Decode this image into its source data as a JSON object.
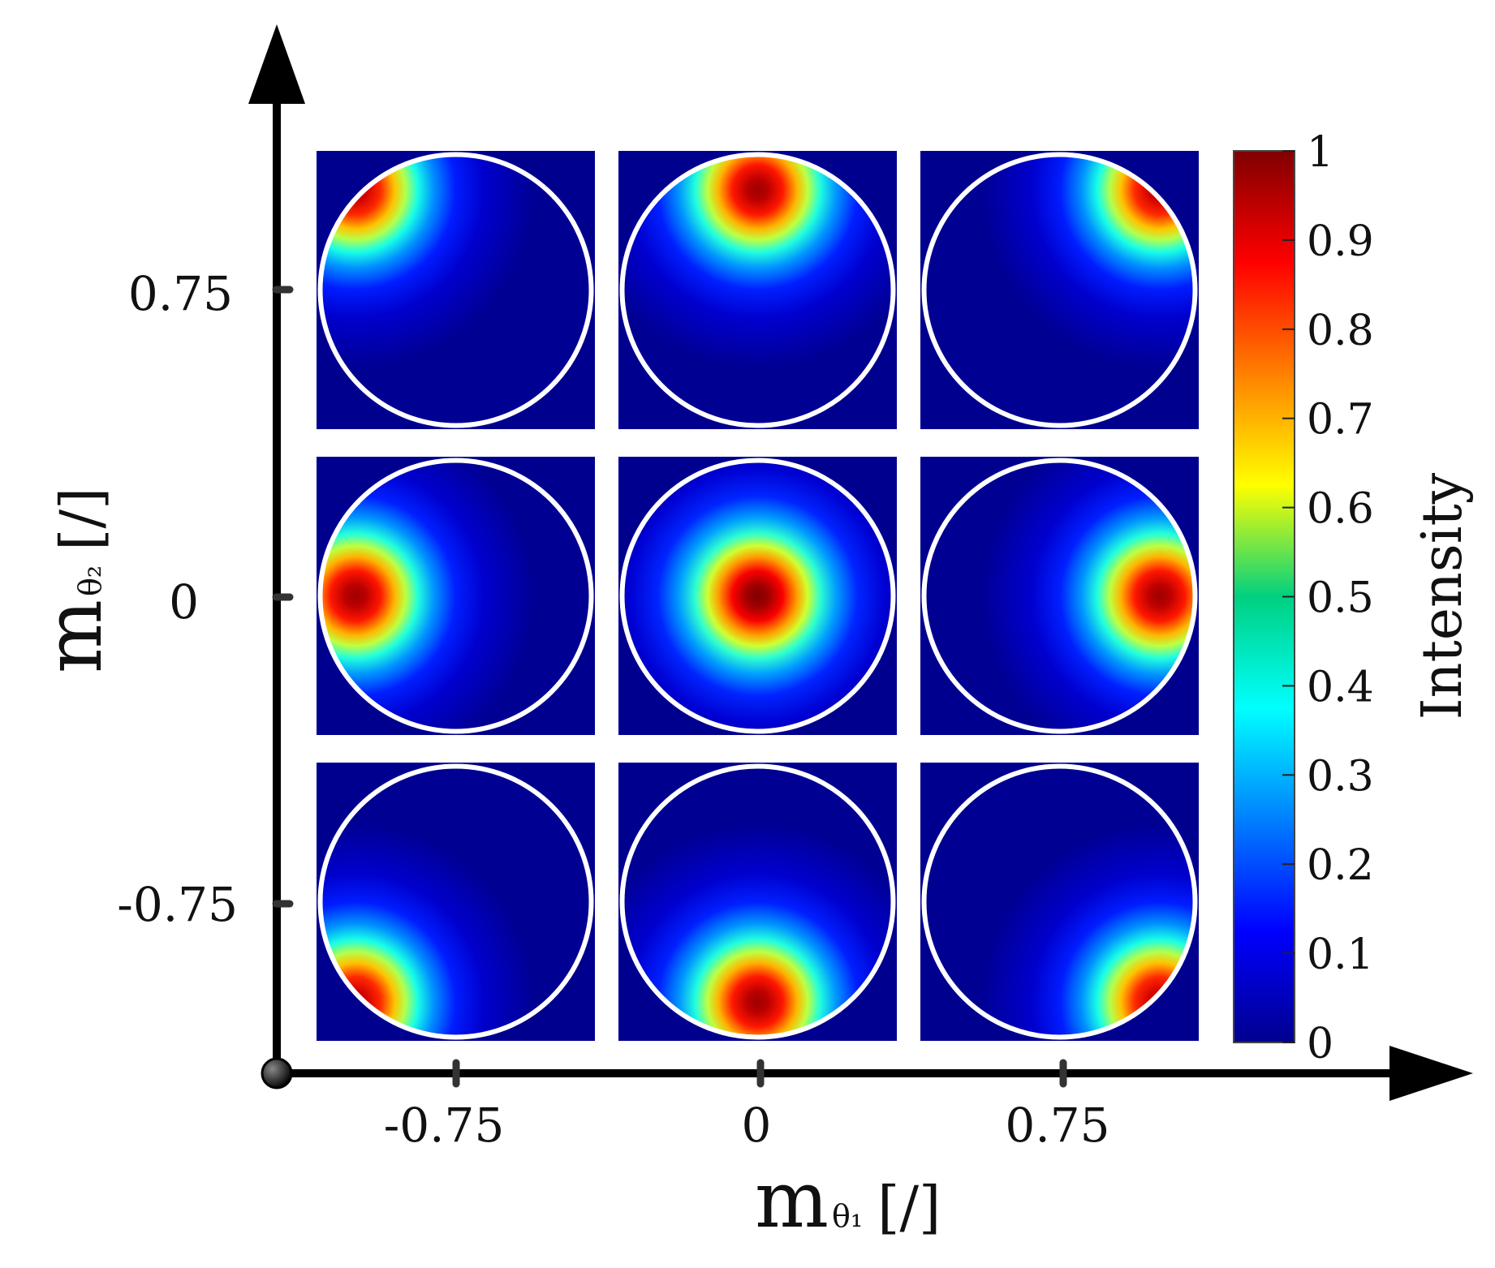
{
  "chart_data": {
    "type": "heatmap",
    "title": "",
    "xlabel": {
      "main": "m",
      "sub": "θ₁",
      "unit": "[/]"
    },
    "ylabel": {
      "main": "m",
      "sub": "θ₂",
      "unit": "[/]"
    },
    "x_ticks": [
      "-0.75",
      "0",
      "0.75"
    ],
    "y_ticks": [
      "0.75",
      "0",
      "-0.75"
    ],
    "x_values": [
      -0.75,
      0,
      0.75
    ],
    "y_values": [
      0.75,
      0,
      -0.75
    ],
    "colorbar": {
      "label": "Intensity",
      "range": [
        0,
        1
      ],
      "ticks": [
        "1",
        "0.9",
        "0.8",
        "0.7",
        "0.6",
        "0.5",
        "0.4",
        "0.3",
        "0.2",
        "0.1",
        "0"
      ]
    },
    "panels": [
      {
        "m_theta1": -0.75,
        "m_theta2": 0.75,
        "peak": [
          -0.75,
          0.75
        ],
        "max": 0.95
      },
      {
        "m_theta1": 0,
        "m_theta2": 0.75,
        "peak": [
          0,
          0.75
        ],
        "max": 0.97
      },
      {
        "m_theta1": 0.75,
        "m_theta2": 0.75,
        "peak": [
          0.75,
          0.75
        ],
        "max": 0.95
      },
      {
        "m_theta1": -0.75,
        "m_theta2": 0,
        "peak": [
          -0.75,
          0
        ],
        "max": 0.97
      },
      {
        "m_theta1": 0,
        "m_theta2": 0,
        "peak": [
          0,
          0
        ],
        "max": 1.0
      },
      {
        "m_theta1": 0.75,
        "m_theta2": 0,
        "peak": [
          0.75,
          0
        ],
        "max": 0.97
      },
      {
        "m_theta1": -0.75,
        "m_theta2": -0.75,
        "peak": [
          -0.75,
          -0.75
        ],
        "max": 0.95
      },
      {
        "m_theta1": 0,
        "m_theta2": -0.75,
        "peak": [
          0,
          -0.75
        ],
        "max": 0.97
      },
      {
        "m_theta1": 0.75,
        "m_theta2": -0.75,
        "peak": [
          0.75,
          -0.75
        ],
        "max": 0.95
      }
    ],
    "colormap": "jet"
  }
}
